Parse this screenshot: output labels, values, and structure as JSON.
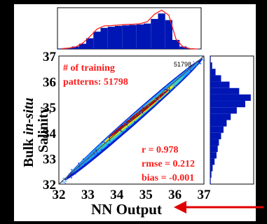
{
  "chart_data": [
    {
      "type": "scatter",
      "xlabel": "NN Output",
      "ylabel_prefix": "Bulk ",
      "ylabel_italic": "in-situ",
      "ylabel_second": "Salinity",
      "xlim": [
        32,
        37
      ],
      "ylim": [
        32,
        37
      ],
      "xticks": [
        "32",
        "33",
        "34",
        "35",
        "36",
        "37"
      ],
      "yticks": [
        "32",
        "33",
        "34",
        "35",
        "36",
        "37"
      ],
      "annotation_patterns_line1": "# of training",
      "annotation_patterns_line2": "patterns: 51798",
      "annotation_count_small": "51798",
      "stats": [
        "r = 0.978",
        "rmse = 0.212",
        "bias = -0.001"
      ],
      "density_core": [
        [
          33.7,
          33.8
        ],
        [
          34.2,
          34.25
        ],
        [
          34.6,
          34.6
        ],
        [
          35.0,
          35.0
        ],
        [
          35.4,
          35.35
        ],
        [
          35.8,
          35.7
        ]
      ],
      "density_halo": [
        [
          32.6,
          32.7
        ],
        [
          33.0,
          33.05
        ],
        [
          33.5,
          33.5
        ],
        [
          36.2,
          36.1
        ],
        [
          36.6,
          36.5
        ],
        [
          36.9,
          36.9
        ]
      ],
      "colors": {
        "core": "#b30000",
        "mid": "#f2e600",
        "halo": "#1f9fff",
        "outer": "#0a1fcc",
        "fit_line": "#505050"
      }
    },
    {
      "type": "bar",
      "title": "",
      "orientation": "vertical",
      "bins_x": [
        32.0,
        32.25,
        32.5,
        32.75,
        33.0,
        33.25,
        33.5,
        33.75,
        34.0,
        34.25,
        34.5,
        34.75,
        35.0,
        35.25,
        35.5,
        35.75,
        36.0,
        36.25,
        36.5,
        36.75
      ],
      "counts": [
        0.3,
        0.6,
        1.5,
        3.2,
        6.5,
        10.5,
        12.8,
        13.5,
        14.0,
        14.3,
        14.6,
        14.9,
        15.4,
        18.2,
        21.5,
        17.5,
        5.5,
        1.5,
        0.4,
        0.1
      ],
      "curve": [
        0.2,
        0.5,
        1.2,
        3.5,
        7.5,
        12.0,
        14.0,
        14.2,
        14.5,
        14.8,
        15.0,
        15.3,
        16.5,
        21.0,
        23.5,
        20.5,
        6.0,
        1.2,
        0.2,
        0.0
      ],
      "ylim": [
        0,
        25
      ],
      "colors": {
        "bar": "#0016b4",
        "curve": "#ff1a1a"
      }
    },
    {
      "type": "bar",
      "title": "",
      "orientation": "horizontal",
      "bins_y": [
        32.0,
        32.25,
        32.5,
        32.75,
        33.0,
        33.25,
        33.5,
        33.75,
        34.0,
        34.25,
        34.5,
        34.75,
        35.0,
        35.25,
        35.5,
        35.75,
        36.0,
        36.25,
        36.5,
        36.75
      ],
      "counts": [
        0.2,
        0.5,
        1.0,
        1.8,
        2.6,
        3.1,
        3.6,
        4.5,
        5.5,
        6.8,
        8.5,
        11.0,
        14.5,
        16.8,
        12.0,
        8.0,
        4.5,
        2.2,
        0.8,
        0.2
      ],
      "xlim": [
        0,
        18
      ],
      "colors": {
        "bar": "#0016b4"
      }
    }
  ],
  "arrow": {
    "color": "#e00000"
  }
}
